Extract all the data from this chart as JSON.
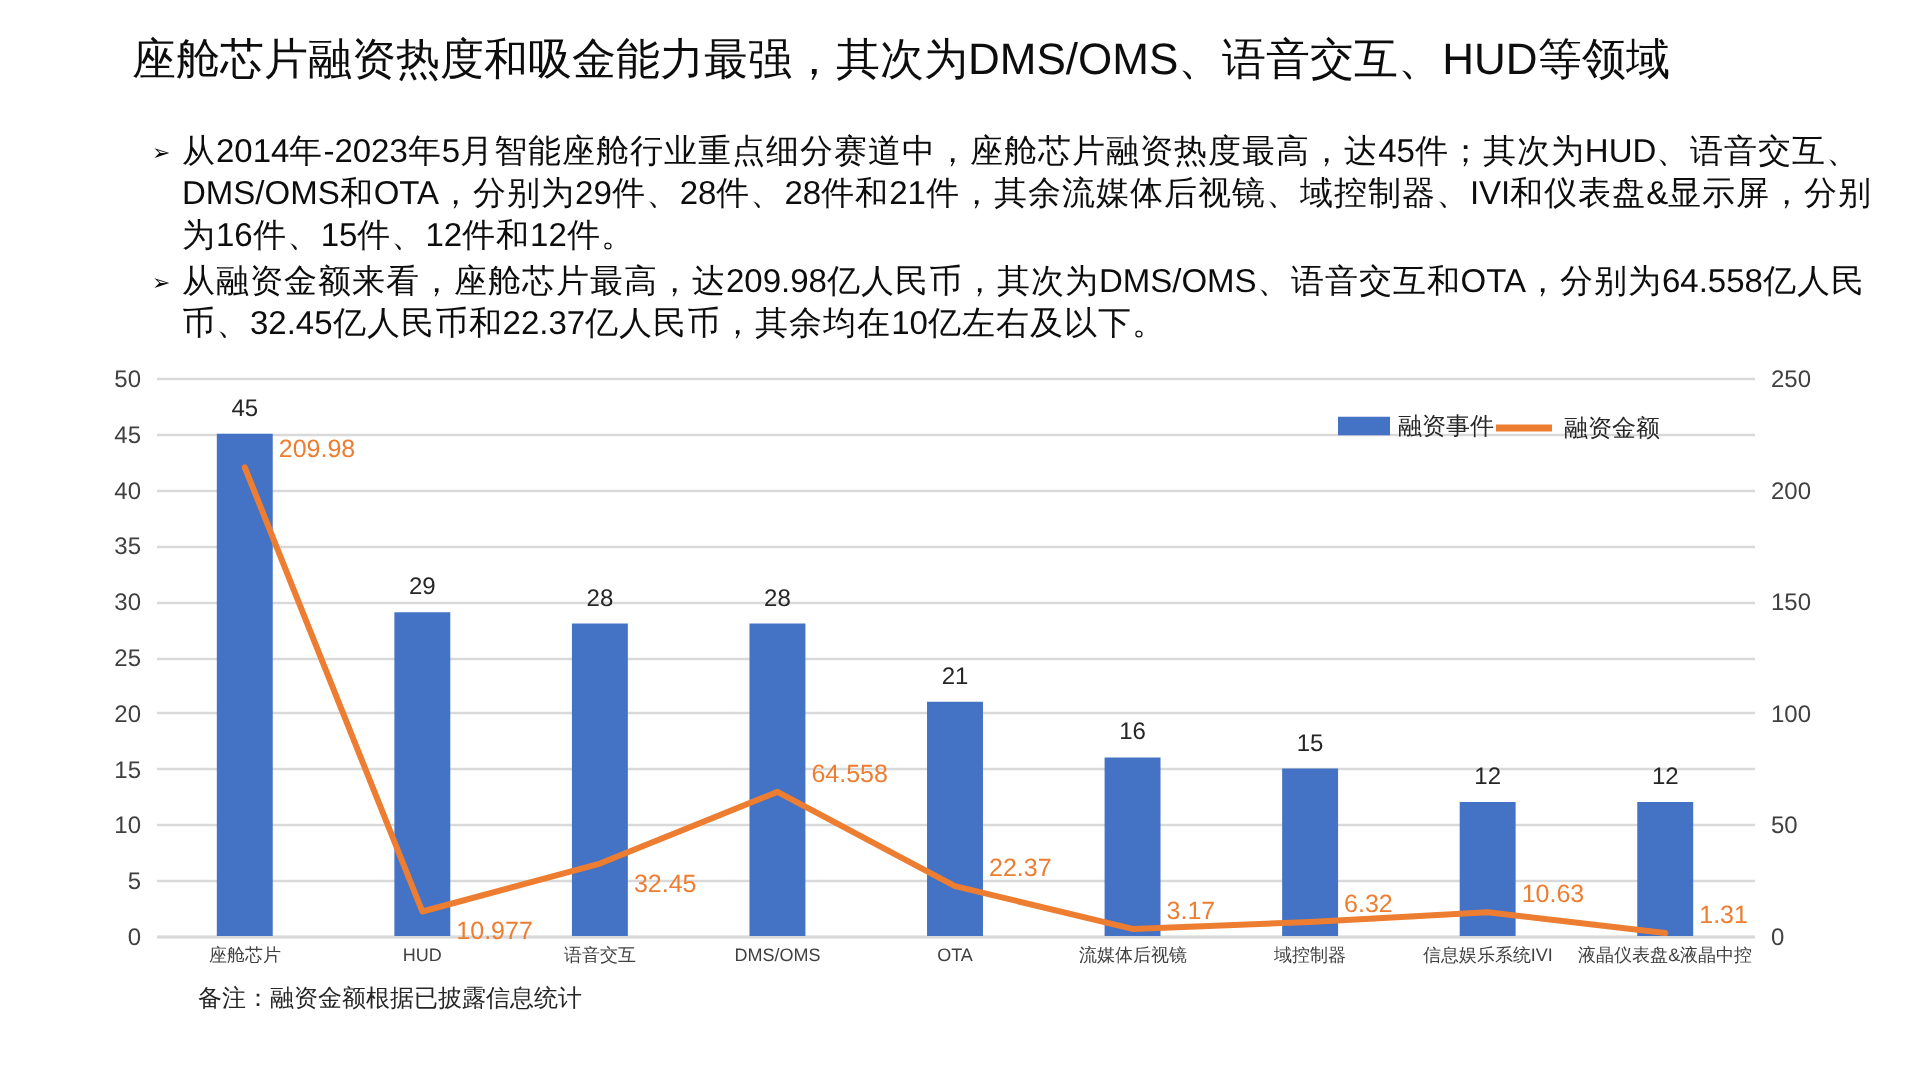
{
  "chart_data": {
    "type": "bar",
    "title": "座舱芯片融资热度和吸金能力最强，其次为DMS/OMS、语音交互、HUD等领域",
    "subtitle": [
      "➢ 从2014年-2023年5月智能座舱行业重点细分赛道中，座舱芯片融资热度最高，达45件；其次为HUD、语音交互、DMS/OMS和OTA，分别为29件、28件、28件和21件，其余流媒体后视镜、域控制器、IVI和仪表盘&显示屏，分别为16件、15件、12件和12件。",
      "➢ 从融资金额来看，座舱芯片最高，达209.98亿人民币，其次为DMS/OMS、语音交互和OTA，分别为64.558亿人民币、32.45亿人民币和22.37亿人民币，其余均在10亿左右及以下。"
    ],
    "categories": [
      "座舱芯片",
      "HUD",
      "语音交互",
      "DMS/OMS",
      "OTA",
      "流媒体后视镜",
      "域控制器",
      "信息娱乐系统IVI",
      "液晶仪表盘&液晶中控"
    ],
    "series": [
      {
        "name": "融资事件",
        "color": "#4472c4",
        "values": [
          45,
          29,
          28,
          28,
          21,
          16,
          15,
          12,
          12
        ]
      },
      {
        "name": "融资金额",
        "type": "line",
        "axis": "y2",
        "color": "#ed7d31",
        "values": [
          209.98,
          10.977,
          32.45,
          64.558,
          22.37,
          3.17,
          6.32,
          10.63,
          1.31
        ]
      }
    ],
    "ylim": [
      0,
      50
    ],
    "yticks": [
      0,
      5,
      10,
      15,
      20,
      25,
      30,
      35,
      40,
      45,
      50
    ],
    "y2lim": [
      0,
      250
    ],
    "y2ticks": [
      0,
      50,
      100,
      150,
      200,
      250
    ],
    "grid": "y",
    "legend": "top right",
    "data_labels": true,
    "annotations": [
      "备注：融资金额根据已披露信息统计"
    ]
  }
}
